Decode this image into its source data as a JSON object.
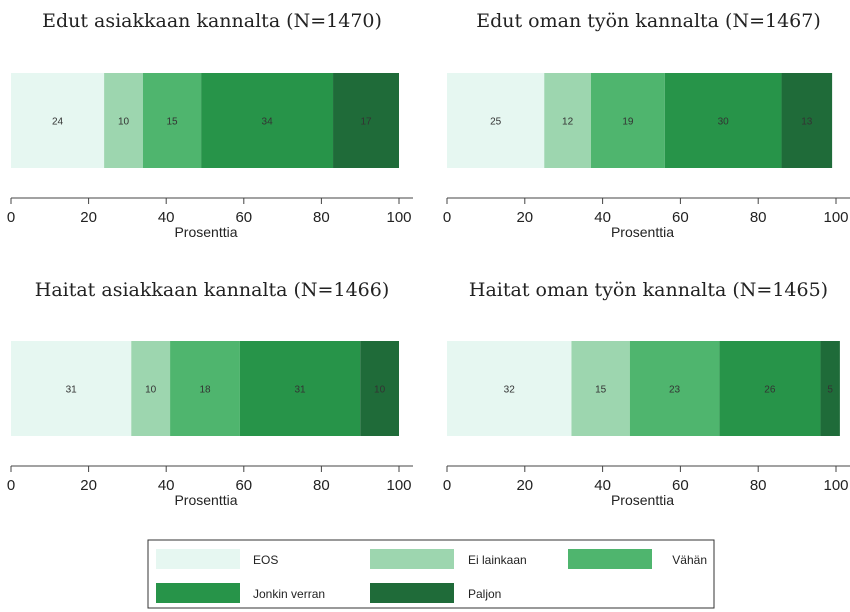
{
  "legend": {
    "items": [
      {
        "name": "EOS",
        "color": "#e6f7f1"
      },
      {
        "name": "Ei lainkaan",
        "color": "#9dd6af"
      },
      {
        "name": "Vähän",
        "color": "#4fb56e"
      },
      {
        "name": "Jonkin verran",
        "color": "#279449"
      },
      {
        "name": "Paljon",
        "color": "#1f6b39"
      }
    ]
  },
  "chart_data": [
    {
      "type": "bar",
      "orientation": "horizontal-stacked",
      "title": "Edut asiakkaan kannalta (N=1470)",
      "xlabel": "Prosenttia",
      "xlim": [
        0,
        100
      ],
      "xticks": [
        0,
        20,
        40,
        60,
        80,
        100
      ],
      "series": [
        {
          "name": "EOS",
          "values": [
            24
          ]
        },
        {
          "name": "Ei lainkaan",
          "values": [
            10
          ]
        },
        {
          "name": "Vähän",
          "values": [
            15
          ]
        },
        {
          "name": "Jonkin verran",
          "values": [
            34
          ]
        },
        {
          "name": "Paljon",
          "values": [
            17
          ]
        }
      ]
    },
    {
      "type": "bar",
      "orientation": "horizontal-stacked",
      "title": "Edut oman työn kannalta (N=1467)",
      "xlabel": "Prosenttia",
      "xlim": [
        0,
        100
      ],
      "xticks": [
        0,
        20,
        40,
        60,
        80,
        100
      ],
      "series": [
        {
          "name": "EOS",
          "values": [
            25
          ]
        },
        {
          "name": "Ei lainkaan",
          "values": [
            12
          ]
        },
        {
          "name": "Vähän",
          "values": [
            19
          ]
        },
        {
          "name": "Jonkin verran",
          "values": [
            30
          ]
        },
        {
          "name": "Paljon",
          "values": [
            13
          ]
        }
      ]
    },
    {
      "type": "bar",
      "orientation": "horizontal-stacked",
      "title": "Haitat asiakkaan kannalta (N=1466)",
      "xlabel": "Prosenttia",
      "xlim": [
        0,
        100
      ],
      "xticks": [
        0,
        20,
        40,
        60,
        80,
        100
      ],
      "series": [
        {
          "name": "EOS",
          "values": [
            31
          ]
        },
        {
          "name": "Ei lainkaan",
          "values": [
            10
          ]
        },
        {
          "name": "Vähän",
          "values": [
            18
          ]
        },
        {
          "name": "Jonkin verran",
          "values": [
            31
          ]
        },
        {
          "name": "Paljon",
          "values": [
            10
          ]
        }
      ]
    },
    {
      "type": "bar",
      "orientation": "horizontal-stacked",
      "title": "Haitat oman työn kannalta (N=1465)",
      "xlabel": "Prosenttia",
      "xlim": [
        0,
        100
      ],
      "xticks": [
        0,
        20,
        40,
        60,
        80,
        100
      ],
      "series": [
        {
          "name": "EOS",
          "values": [
            32
          ]
        },
        {
          "name": "Ei lainkaan",
          "values": [
            15
          ]
        },
        {
          "name": "Vähän",
          "values": [
            23
          ]
        },
        {
          "name": "Jonkin verran",
          "values": [
            26
          ]
        },
        {
          "name": "Paljon",
          "values": [
            5
          ]
        }
      ]
    }
  ]
}
